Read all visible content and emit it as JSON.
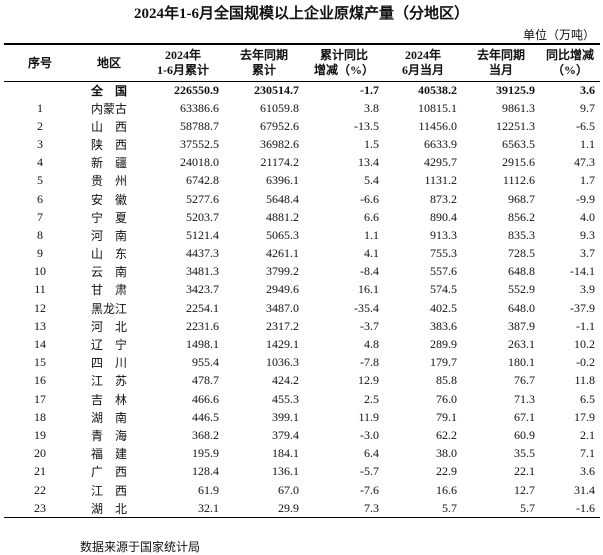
{
  "title": "2024年1-6月全国规模以上企业原煤产量（分地区）",
  "unit": "单位（万吨）",
  "header": [
    [
      "序号"
    ],
    [
      "地区"
    ],
    [
      "2024年",
      "1-6月累计"
    ],
    [
      "去年同期",
      "累计"
    ],
    [
      "累计同比",
      "增减（%）"
    ],
    [
      "2024年",
      "6月当月"
    ],
    [
      "去年同期",
      "当月"
    ],
    [
      "同比增减",
      "（%）"
    ]
  ],
  "total": [
    "全　国",
    "226550.9",
    "230514.7",
    "-1.7",
    "40538.2",
    "39125.9",
    "3.6"
  ],
  "rows": [
    [
      "1",
      "内蒙古",
      "63386.6",
      "61059.8",
      "3.8",
      "10815.1",
      "9861.3",
      "9.7"
    ],
    [
      "2",
      "山　西",
      "58788.7",
      "67952.6",
      "-13.5",
      "11456.0",
      "12251.3",
      "-6.5"
    ],
    [
      "3",
      "陕　西",
      "37552.5",
      "36982.6",
      "1.5",
      "6633.9",
      "6563.5",
      "1.1"
    ],
    [
      "4",
      "新　疆",
      "24018.0",
      "21174.2",
      "13.4",
      "4295.7",
      "2915.6",
      "47.3"
    ],
    [
      "5",
      "贵　州",
      "6742.8",
      "6396.1",
      "5.4",
      "1131.2",
      "1112.6",
      "1.7"
    ],
    [
      "6",
      "安　徽",
      "5277.6",
      "5648.4",
      "-6.6",
      "873.2",
      "968.7",
      "-9.9"
    ],
    [
      "7",
      "宁　夏",
      "5203.7",
      "4881.2",
      "6.6",
      "890.4",
      "856.2",
      "4.0"
    ],
    [
      "8",
      "河　南",
      "5121.4",
      "5065.3",
      "1.1",
      "913.3",
      "835.3",
      "9.3"
    ],
    [
      "9",
      "山　东",
      "4437.3",
      "4261.1",
      "4.1",
      "755.3",
      "728.5",
      "3.7"
    ],
    [
      "10",
      "云　南",
      "3481.3",
      "3799.2",
      "-8.4",
      "557.6",
      "648.8",
      "-14.1"
    ],
    [
      "11",
      "甘　肃",
      "3423.7",
      "2949.6",
      "16.1",
      "574.5",
      "552.9",
      "3.9"
    ],
    [
      "12",
      "黑龙江",
      "2254.1",
      "3487.0",
      "-35.4",
      "402.5",
      "648.0",
      "-37.9"
    ],
    [
      "13",
      "河　北",
      "2231.6",
      "2317.2",
      "-3.7",
      "383.6",
      "387.9",
      "-1.1"
    ],
    [
      "14",
      "辽　宁",
      "1498.1",
      "1429.1",
      "4.8",
      "289.9",
      "263.1",
      "10.2"
    ],
    [
      "15",
      "四　川",
      "955.4",
      "1036.3",
      "-7.8",
      "179.7",
      "180.1",
      "-0.2"
    ],
    [
      "16",
      "江　苏",
      "478.7",
      "424.2",
      "12.9",
      "85.8",
      "76.7",
      "11.8"
    ],
    [
      "17",
      "吉　林",
      "466.6",
      "455.3",
      "2.5",
      "76.0",
      "71.3",
      "6.5"
    ],
    [
      "18",
      "湖　南",
      "446.5",
      "399.1",
      "11.9",
      "79.1",
      "67.1",
      "17.9"
    ],
    [
      "19",
      "青　海",
      "368.2",
      "379.4",
      "-3.0",
      "62.2",
      "60.9",
      "2.1"
    ],
    [
      "20",
      "福　建",
      "195.9",
      "184.1",
      "6.4",
      "38.0",
      "35.5",
      "7.1"
    ],
    [
      "21",
      "广　西",
      "128.4",
      "136.1",
      "-5.7",
      "22.9",
      "22.1",
      "3.6"
    ],
    [
      "22",
      "江　西",
      "61.9",
      "67.0",
      "-7.6",
      "16.6",
      "12.7",
      "31.4"
    ],
    [
      "23",
      "湖　北",
      "32.1",
      "29.9",
      "7.3",
      "5.7",
      "5.7",
      "-1.6"
    ]
  ],
  "source": "数据来源于国家统计局"
}
